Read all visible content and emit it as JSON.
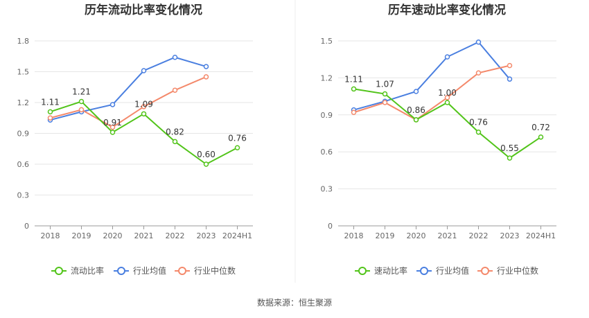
{
  "source_text": "数据来源：恒生聚源",
  "chart_data": [
    {
      "type": "line",
      "title": "历年流动比率变化情况",
      "categories": [
        "2018",
        "2019",
        "2020",
        "2021",
        "2022",
        "2023",
        "2024H1"
      ],
      "ylim": [
        0,
        1.8
      ],
      "yticks": [
        "0",
        "0.3",
        "0.6",
        "0.9",
        "1.2",
        "1.5",
        "1.8"
      ],
      "grid": true,
      "legend_position": "bottom",
      "series": [
        {
          "name": "流动比率",
          "color": "#52c41a",
          "labeled": true,
          "values": [
            1.11,
            1.21,
            0.91,
            1.09,
            0.82,
            0.6,
            0.76
          ]
        },
        {
          "name": "行业均值",
          "color": "#4a7fe0",
          "labeled": false,
          "values": [
            1.03,
            1.11,
            1.18,
            1.51,
            1.64,
            1.55,
            null
          ]
        },
        {
          "name": "行业中位数",
          "color": "#f4896b",
          "labeled": false,
          "values": [
            1.05,
            1.13,
            0.96,
            1.16,
            1.32,
            1.45,
            null
          ]
        }
      ]
    },
    {
      "type": "line",
      "title": "历年速动比率变化情况",
      "categories": [
        "2018",
        "2019",
        "2020",
        "2021",
        "2022",
        "2023",
        "2024H1"
      ],
      "ylim": [
        0,
        1.5
      ],
      "yticks": [
        "0",
        "0.3",
        "0.6",
        "0.9",
        "1.2",
        "1.5"
      ],
      "grid": true,
      "legend_position": "bottom",
      "series": [
        {
          "name": "速动比率",
          "color": "#52c41a",
          "labeled": true,
          "values": [
            1.11,
            1.07,
            0.86,
            1.0,
            0.76,
            0.55,
            0.72
          ]
        },
        {
          "name": "行业均值",
          "color": "#4a7fe0",
          "labeled": false,
          "values": [
            0.94,
            1.01,
            1.09,
            1.37,
            1.49,
            1.19,
            null
          ]
        },
        {
          "name": "行业中位数",
          "color": "#f4896b",
          "labeled": false,
          "values": [
            0.92,
            1.0,
            0.86,
            1.04,
            1.24,
            1.3,
            null
          ]
        }
      ]
    }
  ]
}
